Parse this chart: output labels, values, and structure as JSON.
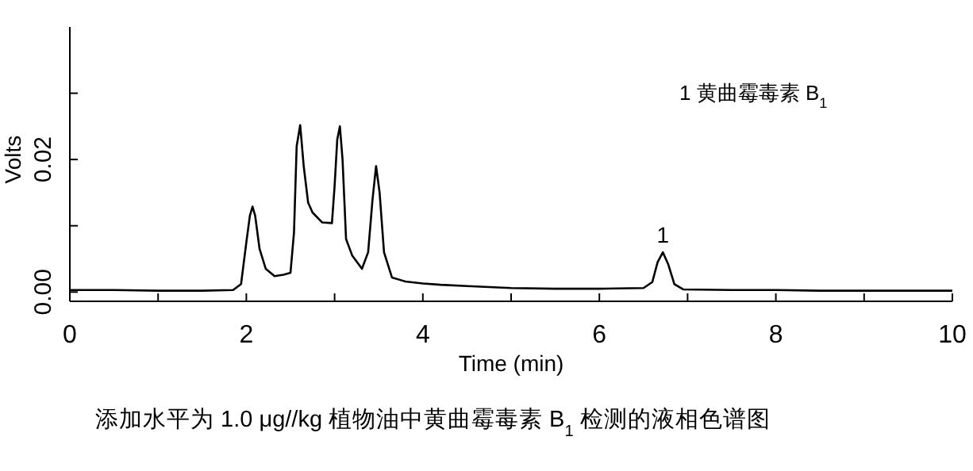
{
  "chart_data": {
    "type": "line",
    "xlabel": "Time (min)",
    "ylabel": "Volts",
    "xlim": [
      0,
      10
    ],
    "ylim": [
      -0.0014,
      0.04
    ],
    "xticks": [
      0,
      {
        "value": 1,
        "label": null
      },
      2,
      {
        "value": 3,
        "label": null
      },
      4,
      {
        "value": 5,
        "label": null
      },
      6,
      {
        "value": 7,
        "label": null
      },
      8,
      {
        "value": 9,
        "label": null
      },
      10
    ],
    "yticks": [
      {
        "value": 0,
        "label": "0.00"
      },
      {
        "value": 0.01,
        "label": null
      },
      {
        "value": 0.02,
        "label": "0.02"
      },
      {
        "value": 0.03,
        "label": null
      }
    ],
    "grid": false,
    "marker": "none",
    "line_style": "solid",
    "series": [
      {
        "color": "#000000",
        "x": [
          0,
          0.5,
          1,
          1.5,
          1.85,
          1.94,
          2.0,
          2.04,
          2.07,
          2.1,
          2.15,
          2.22,
          2.32,
          2.42,
          2.5,
          2.54,
          2.57,
          2.61,
          2.65,
          2.7,
          2.75,
          2.86,
          2.97,
          3.0,
          3.03,
          3.06,
          3.09,
          3.13,
          3.2,
          3.31,
          3.38,
          3.43,
          3.47,
          3.51,
          3.56,
          3.65,
          3.8,
          4.0,
          4.2,
          4.5,
          5.0,
          5.5,
          6.0,
          6.5,
          6.6,
          6.66,
          6.72,
          6.78,
          6.85,
          6.95,
          7.5,
          8.0,
          8.5,
          9.0,
          9.5,
          10
        ],
        "values": [
          0.0003,
          0.0003,
          0.0002,
          0.0002,
          0.0003,
          0.0012,
          0.0075,
          0.0115,
          0.0129,
          0.0115,
          0.0065,
          0.0035,
          0.0024,
          0.0026,
          0.0029,
          0.009,
          0.022,
          0.0252,
          0.019,
          0.0135,
          0.012,
          0.0105,
          0.0104,
          0.016,
          0.023,
          0.025,
          0.02,
          0.008,
          0.0055,
          0.0035,
          0.006,
          0.014,
          0.019,
          0.015,
          0.006,
          0.0022,
          0.0016,
          0.0013,
          0.0011,
          0.0009,
          0.0006,
          0.0005,
          0.0005,
          0.0006,
          0.0015,
          0.0045,
          0.006,
          0.0042,
          0.0012,
          0.0004,
          0.0003,
          0.0003,
          0.0002,
          0.0002,
          0.0002,
          0.0002
        ]
      }
    ],
    "annotations": [
      {
        "text": "1",
        "x": 6.72,
        "y": 0.0065
      },
      "1  黄曲霉毒素 B$_{1}$",
      "添加水平为 1.0 μg//kg  植物油中黄曲霉毒素 B$_{1}$ 检测的液相色谱图"
    ]
  }
}
